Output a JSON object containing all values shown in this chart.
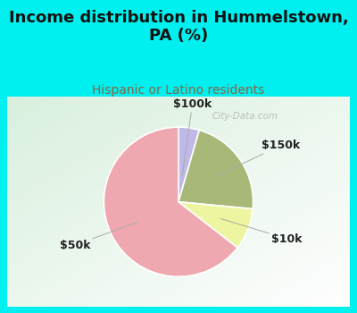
{
  "title": "Income distribution in Hummelstown,\nPA (%)",
  "subtitle": "Hispanic or Latino residents",
  "slices": [
    {
      "label": "$100k",
      "value": 4.5,
      "color": "#c0b8e8"
    },
    {
      "label": "$150k",
      "value": 22.0,
      "color": "#a8b878"
    },
    {
      "label": "$10k",
      "value": 9.0,
      "color": "#eef5a0"
    },
    {
      "label": "$50k",
      "value": 64.5,
      "color": "#f0a8b0"
    }
  ],
  "start_angle": 90,
  "counterclock": false,
  "background_color": "#00efef",
  "chart_bg_color": "#ddf0e0",
  "title_fontsize": 13,
  "subtitle_fontsize": 10,
  "label_fontsize": 9,
  "watermark": "City-Data.com",
  "label_color": "#222222",
  "subtitle_color": "#886644"
}
